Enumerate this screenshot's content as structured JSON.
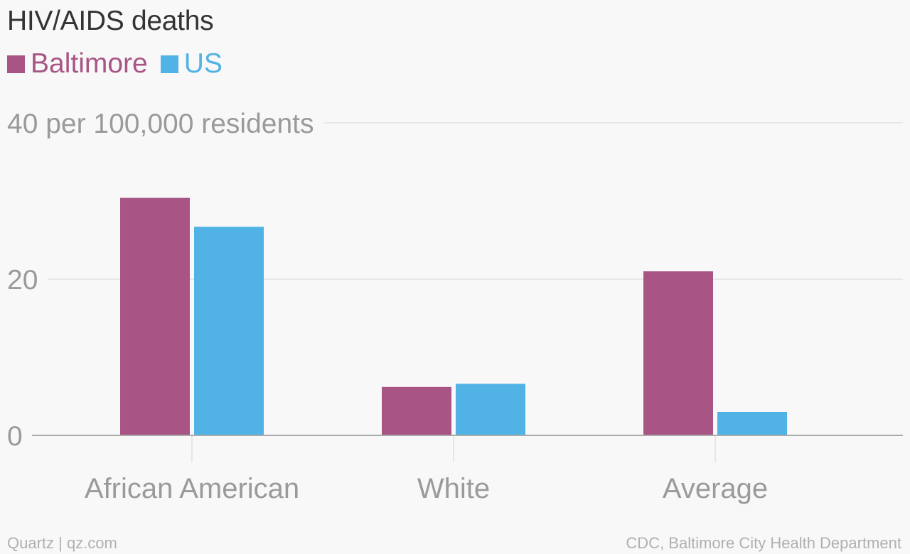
{
  "chart_data": {
    "type": "bar",
    "title": "HIV/AIDS deaths",
    "categories": [
      "African American",
      "White",
      "Average"
    ],
    "series": [
      {
        "name": "Baltimore",
        "color": "#a85586",
        "values": [
          30.4,
          6.2,
          21.0
        ]
      },
      {
        "name": "US",
        "color": "#51b2e5",
        "values": [
          26.7,
          6.6,
          3.0
        ]
      }
    ],
    "y_ticks": [
      {
        "value": 40,
        "label": "40 per 100,000 residents"
      },
      {
        "value": 20,
        "label": "20"
      },
      {
        "value": 0,
        "label": "0"
      }
    ],
    "ylim": [
      0,
      40
    ],
    "grid": true,
    "legend": "top-left"
  },
  "footer": {
    "credit": "Quartz | qz.com",
    "source": "CDC, Baltimore City Health Department"
  }
}
